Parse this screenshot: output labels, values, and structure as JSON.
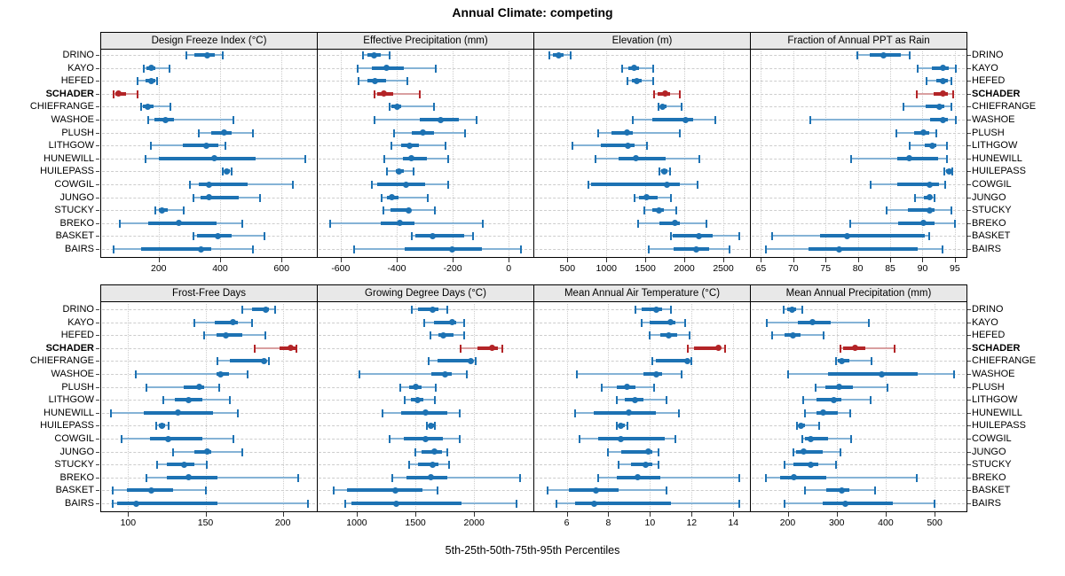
{
  "title": "Annual Climate: competing",
  "footer": "5th-25th-50th-75th-95th Percentiles",
  "chart_data": {
    "type": "dotplot-percentiles",
    "description": "Trellis of 8 panels; each row shows 5th-25th-50th-75th-95th percentile whisker, box, median dot per site",
    "legend_position": "none",
    "grid": "dashed-rows and dotted-column-ticks",
    "sites": [
      "DRINO",
      "KAYO",
      "HEFED",
      "SCHADER",
      "CHIEFRANGE",
      "WASHOE",
      "PLUSH",
      "LITHGOW",
      "HUNEWILL",
      "HUILEPASS",
      "COWGIL",
      "JUNGO",
      "STUCKY",
      "BREKO",
      "BASKET",
      "BAIRS"
    ],
    "highlight_site": "SCHADER",
    "percentile_labels": [
      "5th",
      "25th",
      "50th",
      "75th",
      "95th"
    ],
    "colors": {
      "series": "#1d72b3",
      "series_light": "#85b3d6",
      "highlight": "#b32427",
      "highlight_light": "#d99fa0",
      "strip_bg": "#e8e8e8",
      "grid": "#cdcdcd",
      "border": "#000000"
    },
    "panels": [
      {
        "label": "Design Freeze Index (°C)",
        "ticks": [
          200,
          400,
          600
        ],
        "range": [
          10,
          715
        ],
        "values": [
          [
            290,
            317,
            357,
            384,
            409
          ],
          [
            151,
            161,
            176,
            190,
            234
          ],
          [
            132,
            156,
            176,
            190,
            196
          ],
          [
            54,
            60,
            68,
            95,
            131
          ],
          [
            143,
            150,
            164,
            184,
            237
          ],
          [
            165,
            187,
            222,
            250,
            444
          ],
          [
            331,
            370,
            414,
            438,
            506
          ],
          [
            176,
            278,
            355,
            394,
            418
          ],
          [
            156,
            200,
            380,
            516,
            676
          ],
          [
            409,
            414,
            421,
            431,
            438
          ],
          [
            302,
            331,
            365,
            491,
            637
          ],
          [
            312,
            336,
            363,
            462,
            530
          ],
          [
            190,
            200,
            210,
            229,
            283
          ],
          [
            74,
            166,
            266,
            389,
            472
          ],
          [
            312,
            326,
            392,
            438,
            545
          ],
          [
            54,
            142,
            338,
            370,
            506
          ]
        ]
      },
      {
        "label": "Effective Precipitation (mm)",
        "ticks": [
          -600,
          -400,
          -200,
          0
        ],
        "range": [
          -685,
          88
        ],
        "values": [
          [
            -520,
            -505,
            -480,
            -458,
            -425
          ],
          [
            -540,
            -490,
            -435,
            -375,
            -260
          ],
          [
            -535,
            -505,
            -477,
            -437,
            -363
          ],
          [
            -479,
            -470,
            -447,
            -411,
            -318
          ],
          [
            -426,
            -419,
            -398,
            -384,
            -268
          ],
          [
            -479,
            -316,
            -244,
            -179,
            -116
          ],
          [
            -408,
            -347,
            -307,
            -268,
            -155
          ],
          [
            -419,
            -384,
            -355,
            -321,
            -226
          ],
          [
            -444,
            -379,
            -347,
            -293,
            -216
          ],
          [
            -434,
            -402,
            -392,
            -374,
            -339
          ],
          [
            -489,
            -470,
            -368,
            -297,
            -216
          ],
          [
            -455,
            -434,
            -416,
            -395,
            -289
          ],
          [
            -447,
            -421,
            -358,
            -349,
            -263
          ],
          [
            -637,
            -458,
            -389,
            -337,
            -93
          ],
          [
            -347,
            -332,
            -271,
            -160,
            -126
          ],
          [
            -553,
            -371,
            -203,
            -97,
            44
          ]
        ]
      },
      {
        "label": "Elevation (m)",
        "ticks": [
          500,
          1000,
          1500,
          2000,
          2500
        ],
        "range": [
          64,
          2841
        ],
        "values": [
          [
            273,
            318,
            386,
            451,
            538
          ],
          [
            1197,
            1284,
            1360,
            1417,
            1598
          ],
          [
            1265,
            1322,
            1386,
            1455,
            1606
          ],
          [
            1617,
            1663,
            1758,
            1814,
            1947
          ],
          [
            1674,
            1689,
            1720,
            1777,
            1966
          ],
          [
            1333,
            1587,
            2015,
            2117,
            2394
          ],
          [
            894,
            1068,
            1265,
            1341,
            1945
          ],
          [
            564,
            932,
            1273,
            1360,
            1523
          ],
          [
            856,
            1151,
            1379,
            1758,
            2193
          ],
          [
            1682,
            1701,
            1739,
            1788,
            1814
          ],
          [
            765,
            803,
            1777,
            1939,
            2167
          ],
          [
            1360,
            1417,
            1511,
            1663,
            1826
          ],
          [
            1485,
            1587,
            1674,
            1739,
            1902
          ],
          [
            1409,
            1682,
            1879,
            1947,
            2288
          ],
          [
            1826,
            1852,
            2182,
            2364,
            2705
          ],
          [
            1549,
            1864,
            2155,
            2318,
            2583
          ]
        ]
      },
      {
        "label": "Fraction of Annual PPT as Rain",
        "ticks": [
          65,
          70,
          75,
          80,
          85,
          90,
          95
        ],
        "range": [
          63.3,
          96.8
        ],
        "values": [
          [
            79.9,
            81.8,
            84.0,
            86.6,
            88.0
          ],
          [
            89.2,
            91.4,
            93.2,
            94.1,
            95.1
          ],
          [
            90.6,
            92.1,
            93.1,
            93.9,
            94.4
          ],
          [
            89.1,
            91.7,
            93.2,
            93.9,
            94.8
          ],
          [
            87.0,
            90.5,
            92.6,
            93.3,
            94.4
          ],
          [
            72.7,
            91.2,
            93.1,
            93.9,
            95.1
          ],
          [
            86.0,
            88.7,
            90.1,
            91.0,
            92.2
          ],
          [
            88.0,
            90.3,
            91.5,
            92.1,
            93.8
          ],
          [
            78.9,
            86.1,
            88.0,
            92.4,
            93.8
          ],
          [
            93.3,
            93.6,
            94.1,
            94.4,
            94.6
          ],
          [
            82.0,
            86.1,
            91.1,
            92.5,
            93.5
          ],
          [
            88.9,
            90.2,
            91.1,
            91.5,
            91.8
          ],
          [
            84.5,
            87.7,
            91.1,
            91.8,
            94.4
          ],
          [
            78.8,
            86.2,
            90.2,
            91.9,
            95.0
          ],
          [
            66.8,
            74.2,
            78.4,
            90.4,
            91.1
          ],
          [
            65.8,
            72.3,
            77.1,
            89.2,
            93.1
          ]
        ]
      },
      {
        "label": "Frost-Free Days",
        "ticks": [
          100,
          150,
          200
        ],
        "range": [
          82,
          222
        ],
        "values": [
          [
            174,
            180,
            189,
            191,
            195
          ],
          [
            143,
            156,
            168,
            171,
            180
          ],
          [
            149,
            157,
            163,
            174,
            189
          ],
          [
            182,
            198,
            205,
            208,
            209
          ],
          [
            158,
            166,
            188,
            189,
            191
          ],
          [
            105,
            157,
            160,
            165,
            177
          ],
          [
            112,
            136,
            146,
            149,
            159
          ],
          [
            123,
            130,
            139,
            148,
            166
          ],
          [
            89,
            110,
            132,
            155,
            171
          ],
          [
            118,
            120,
            122,
            124,
            126
          ],
          [
            96,
            114,
            126,
            148,
            168
          ],
          [
            129,
            143,
            151,
            154,
            174
          ],
          [
            119,
            125,
            136,
            143,
            151
          ],
          [
            112,
            125,
            139,
            158,
            210
          ],
          [
            90,
            99,
            115,
            129,
            150
          ],
          [
            90,
            93,
            105,
            158,
            216
          ]
        ]
      },
      {
        "label": "Growing Degree Days (°C)",
        "ticks": [
          1000,
          1500,
          2000
        ],
        "range": [
          660,
          2505
        ],
        "values": [
          [
            1470,
            1525,
            1645,
            1695,
            1775
          ],
          [
            1575,
            1660,
            1810,
            1845,
            1915
          ],
          [
            1625,
            1695,
            1735,
            1825,
            1915
          ],
          [
            1885,
            2030,
            2155,
            2205,
            2240
          ],
          [
            1615,
            1690,
            1975,
            1985,
            2010
          ],
          [
            1025,
            1635,
            1750,
            1810,
            1940
          ],
          [
            1370,
            1450,
            1500,
            1550,
            1670
          ],
          [
            1405,
            1460,
            1520,
            1570,
            1665
          ],
          [
            1220,
            1375,
            1585,
            1770,
            1875
          ],
          [
            1600,
            1615,
            1635,
            1655,
            1665
          ],
          [
            1280,
            1400,
            1585,
            1735,
            1875
          ],
          [
            1500,
            1550,
            1665,
            1725,
            1775
          ],
          [
            1445,
            1525,
            1650,
            1695,
            1785
          ],
          [
            1305,
            1425,
            1635,
            1770,
            2395
          ],
          [
            800,
            915,
            1330,
            1560,
            1690
          ],
          [
            905,
            955,
            1335,
            1895,
            2365
          ]
        ]
      },
      {
        "label": "Mean Annual Air Temperature (°C)",
        "ticks": [
          6,
          8,
          10,
          12,
          14
        ],
        "range": [
          4.4,
          14.8
        ],
        "values": [
          [
            9.3,
            9.6,
            10.3,
            10.6,
            11.0
          ],
          [
            9.6,
            10.0,
            11.0,
            11.2,
            11.7
          ],
          [
            10.0,
            10.5,
            10.9,
            11.3,
            11.9
          ],
          [
            11.8,
            12.1,
            13.3,
            13.4,
            13.6
          ],
          [
            10.1,
            10.3,
            11.8,
            11.9,
            12.0
          ],
          [
            6.5,
            9.7,
            10.3,
            10.6,
            11.5
          ],
          [
            7.7,
            8.4,
            8.9,
            9.3,
            10.2
          ],
          [
            8.4,
            8.8,
            9.3,
            9.7,
            10.8
          ],
          [
            6.4,
            7.3,
            9.0,
            10.3,
            11.4
          ],
          [
            8.4,
            8.5,
            8.6,
            8.8,
            8.9
          ],
          [
            6.6,
            7.5,
            8.6,
            10.7,
            11.2
          ],
          [
            8.0,
            8.6,
            9.9,
            10.1,
            10.4
          ],
          [
            8.5,
            9.1,
            9.8,
            10.1,
            10.4
          ],
          [
            7.5,
            8.4,
            9.4,
            10.5,
            14.3
          ],
          [
            5.1,
            6.1,
            7.4,
            8.5,
            10.8
          ],
          [
            5.5,
            6.4,
            7.3,
            11.0,
            14.3
          ]
        ]
      },
      {
        "label": "Mean Annual Precipitation (mm)",
        "ticks": [
          200,
          300,
          400,
          500
        ],
        "range": [
          123,
          565
        ],
        "values": [
          [
            191,
            199,
            209,
            217,
            230
          ],
          [
            157,
            221,
            251,
            287,
            365
          ],
          [
            169,
            194,
            211,
            227,
            273
          ],
          [
            308,
            313,
            338,
            359,
            419
          ],
          [
            299,
            303,
            311,
            326,
            371
          ],
          [
            200,
            283,
            392,
            465,
            540
          ],
          [
            257,
            277,
            305,
            333,
            403
          ],
          [
            231,
            259,
            295,
            309,
            369
          ],
          [
            235,
            259,
            273,
            303,
            327
          ],
          [
            219,
            223,
            227,
            235,
            265
          ],
          [
            229,
            235,
            247,
            283,
            329
          ],
          [
            211,
            218,
            233,
            272,
            307
          ],
          [
            193,
            211,
            247,
            263,
            299
          ],
          [
            155,
            185,
            213,
            279,
            463
          ],
          [
            235,
            279,
            311,
            325,
            379
          ],
          [
            193,
            272,
            317,
            415,
            499
          ]
        ]
      }
    ]
  }
}
